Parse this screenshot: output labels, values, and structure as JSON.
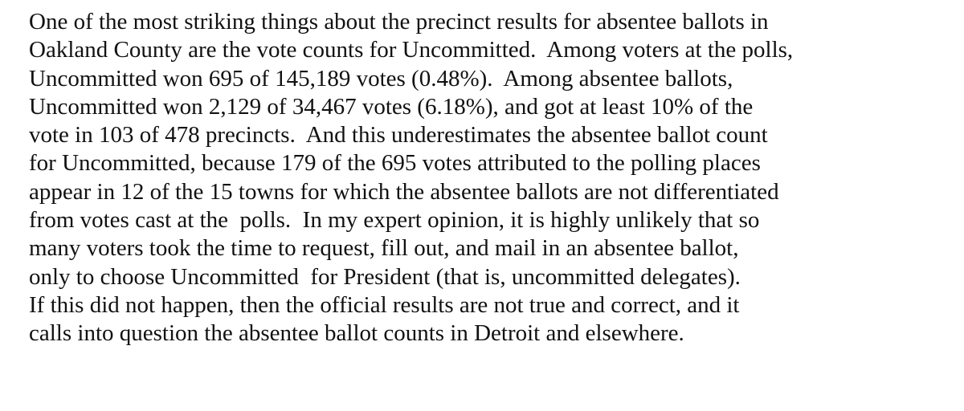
{
  "document": {
    "lines": [
      "One of the most striking things about the precinct results for absentee ballots in",
      "Oakland County are the vote counts for Uncommitted.  Among voters at the polls,",
      "Uncommitted won 695 of 145,189 votes (0.48%).  Among absentee ballots,",
      "Uncommitted won 2,129 of 34,467 votes (6.18%), and got at least 10% of the",
      "vote in 103 of 478 precincts.  And this underestimates the absentee ballot count",
      "for Uncommitted, because 179 of the 695 votes attributed to the polling places",
      "appear in 12 of the 15 towns for which the absentee ballots are not differentiated",
      "from votes cast at the  polls.  In my expert opinion, it is highly unlikely that so",
      "many voters took the time to request, fill out, and mail in an absentee ballot,",
      "only to choose Uncommitted  for President (that is, uncommitted delegates).",
      "If this did not happen, then the official results are not true and correct, and it",
      "calls into question the absentee ballot counts in Detroit and elsewhere."
    ]
  }
}
